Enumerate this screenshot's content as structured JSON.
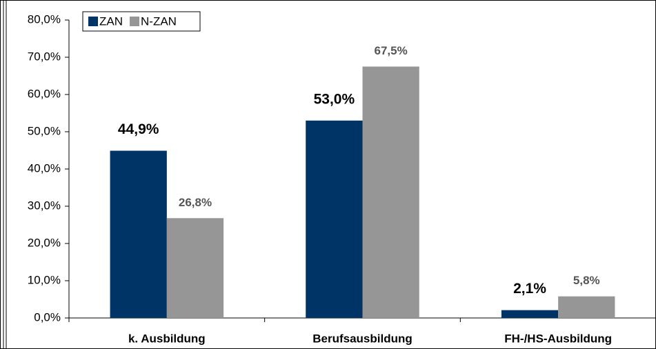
{
  "chart_data": {
    "type": "bar",
    "categories": [
      "k. Ausbildung",
      "Berufsausbildung",
      "FH-/HS-Ausbildung"
    ],
    "series": [
      {
        "name": "ZAN",
        "color": "#003366",
        "values": [
          44.9,
          53.0,
          2.1
        ],
        "value_labels": [
          "44,9%",
          "53,0%",
          "2,1%"
        ]
      },
      {
        "name": "N-ZAN",
        "color": "#969696",
        "values": [
          26.8,
          67.5,
          5.8
        ],
        "value_labels": [
          "26,8%",
          "67,5%",
          "5,8%"
        ]
      }
    ],
    "ylim": [
      0,
      80
    ],
    "yticks": [
      {
        "value": 0,
        "label": "0,0%"
      },
      {
        "value": 10,
        "label": "10,0%"
      },
      {
        "value": 20,
        "label": "20,0%"
      },
      {
        "value": 30,
        "label": "30,0%"
      },
      {
        "value": 40,
        "label": "40,0%"
      },
      {
        "value": 50,
        "label": "50,0%"
      },
      {
        "value": 60,
        "label": "60,0%"
      },
      {
        "value": 70,
        "label": "70,0%"
      },
      {
        "value": 80,
        "label": "80,0%"
      }
    ],
    "legend": "top-left"
  }
}
